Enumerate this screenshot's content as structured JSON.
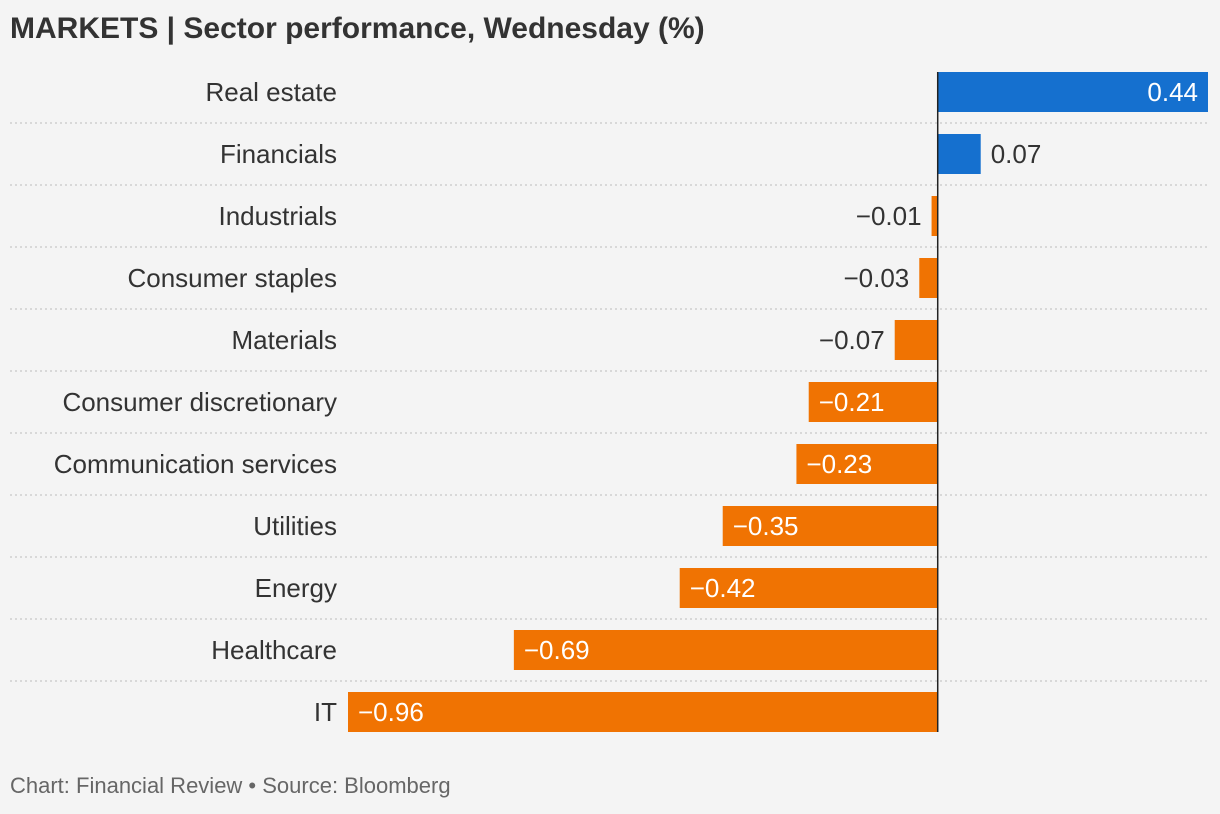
{
  "title": "MARKETS | Sector performance, Wednesday (%)",
  "footer": {
    "credit": "Chart: Financial Review",
    "separator": " • ",
    "source": "Source: Bloomberg"
  },
  "colors": {
    "positive": "#1570cf",
    "negative": "#f07302",
    "text": "#333333",
    "muted": "#666666",
    "background": "#f4f4f4",
    "grid": "#c8c8c8",
    "axis": "#222222"
  },
  "chart_data": {
    "type": "bar",
    "orientation": "horizontal",
    "categories": [
      "Real estate",
      "Financials",
      "Industrials",
      "Consumer staples",
      "Materials",
      "Consumer discretionary",
      "Communication services",
      "Utilities",
      "Energy",
      "Healthcare",
      "IT"
    ],
    "values": [
      0.44,
      0.07,
      -0.01,
      -0.03,
      -0.07,
      -0.21,
      -0.23,
      -0.35,
      -0.42,
      -0.69,
      -0.96
    ],
    "value_labels": [
      "0.44",
      "0.07",
      "−0.01",
      "−0.03",
      "−0.07",
      "−0.21",
      "−0.23",
      "−0.35",
      "−0.42",
      "−0.69",
      "−0.96"
    ],
    "xlim": [
      -0.96,
      0.44
    ],
    "grid": false,
    "legend": "none"
  }
}
